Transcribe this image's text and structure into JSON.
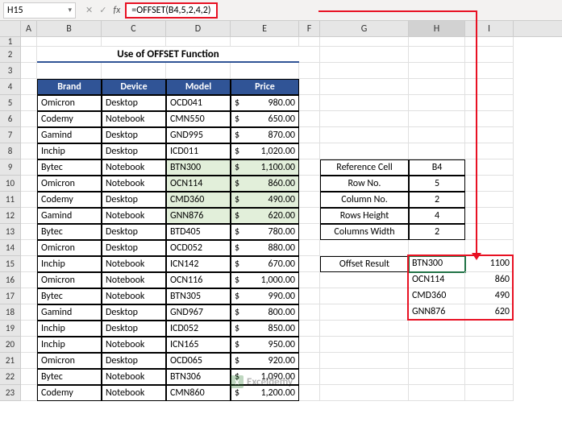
{
  "nameBox": "H15",
  "formula": "=OFFSET(B4,5,2,4,2)",
  "columns": [
    "A",
    "B",
    "C",
    "D",
    "E",
    "F",
    "G",
    "H",
    "I"
  ],
  "colWidths": {
    "A": 20,
    "B": 80,
    "C": 80,
    "D": 80,
    "E": 85,
    "F": 26,
    "G": 110,
    "H": 70,
    "I": 60
  },
  "rows": [
    1,
    2,
    3,
    4,
    5,
    6,
    7,
    8,
    9,
    10,
    11,
    12,
    13,
    14,
    15,
    16,
    17,
    18,
    19,
    20,
    21,
    22,
    23
  ],
  "title": "Use of OFFSET Function",
  "tableHeaders": [
    "Brand",
    "Device",
    "Model",
    "Price"
  ],
  "tableData": [
    {
      "brand": "Omicron",
      "device": "Desktop",
      "model": "OCD041",
      "price": "980.00",
      "hl": false
    },
    {
      "brand": "Codemy",
      "device": "Notebook",
      "model": "CMN550",
      "price": "650.00",
      "hl": false
    },
    {
      "brand": "Gamind",
      "device": "Desktop",
      "model": "GND995",
      "price": "870.00",
      "hl": false
    },
    {
      "brand": "Inchip",
      "device": "Desktop",
      "model": "ICD011",
      "price": "1,020.00",
      "hl": false
    },
    {
      "brand": "Bytec",
      "device": "Notebook",
      "model": "BTN300",
      "price": "1,100.00",
      "hl": true
    },
    {
      "brand": "Omicron",
      "device": "Notebook",
      "model": "OCN114",
      "price": "860.00",
      "hl": true
    },
    {
      "brand": "Codemy",
      "device": "Desktop",
      "model": "CMD360",
      "price": "490.00",
      "hl": true
    },
    {
      "brand": "Gamind",
      "device": "Notebook",
      "model": "GNN876",
      "price": "620.00",
      "hl": true
    },
    {
      "brand": "Bytec",
      "device": "Desktop",
      "model": "BTD405",
      "price": "780.00",
      "hl": false
    },
    {
      "brand": "Omicron",
      "device": "Desktop",
      "model": "OCD052",
      "price": "880.00",
      "hl": false
    },
    {
      "brand": "Inchip",
      "device": "Notebook",
      "model": "ICN142",
      "price": "670.00",
      "hl": false
    },
    {
      "brand": "Omicron",
      "device": "Notebook",
      "model": "OCN116",
      "price": "1,000.00",
      "hl": false
    },
    {
      "brand": "Bytec",
      "device": "Notebook",
      "model": "BTN305",
      "price": "990.00",
      "hl": false
    },
    {
      "brand": "Gamind",
      "device": "Desktop",
      "model": "GND967",
      "price": "800.00",
      "hl": false
    },
    {
      "brand": "Inchip",
      "device": "Desktop",
      "model": "ICD052",
      "price": "850.00",
      "hl": false
    },
    {
      "brand": "Inchip",
      "device": "Notebook",
      "model": "ICN165",
      "price": "950.00",
      "hl": false
    },
    {
      "brand": "Omicron",
      "device": "Desktop",
      "model": "OCD065",
      "price": "920.00",
      "hl": false
    },
    {
      "brand": "Bytec",
      "device": "Notebook",
      "model": "BTN306",
      "price": "1,090.00",
      "hl": false
    },
    {
      "brand": "Codemy",
      "device": "Notebook",
      "model": "CMN860",
      "price": "1,200.00",
      "hl": false
    }
  ],
  "currencySymbol": "$",
  "sideTable": [
    {
      "label": "Reference Cell",
      "value": "B4"
    },
    {
      "label": "Row No.",
      "value": "5"
    },
    {
      "label": "Column No.",
      "value": "2"
    },
    {
      "label": "Rows Height",
      "value": "4"
    },
    {
      "label": "Columns Width",
      "value": "2"
    }
  ],
  "offsetResultLabel": "Offset Result",
  "offsetResult": [
    {
      "a": "BTN300",
      "b": "1100"
    },
    {
      "a": "OCN114",
      "b": "860"
    },
    {
      "a": "CMD360",
      "b": "490"
    },
    {
      "a": "GNN876",
      "b": "620"
    }
  ],
  "watermark": "Exceldemy",
  "colors": {
    "headerBg": "#305496",
    "highlightBg": "#e2efda",
    "redBox": "#e81123",
    "selection": "#217346"
  }
}
